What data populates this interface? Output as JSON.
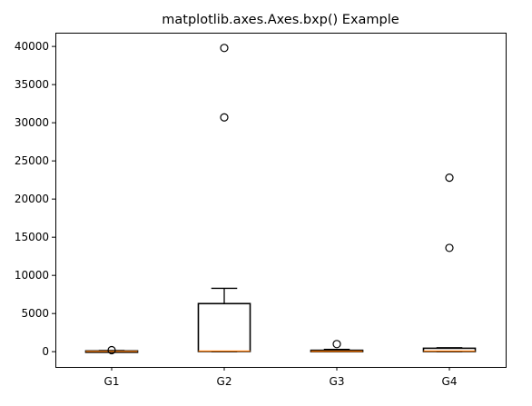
{
  "chart_data": {
    "type": "boxplot",
    "title": "matplotlib.axes.Axes.bxp() Example",
    "xlabel": "",
    "ylabel": "",
    "categories": [
      "G1",
      "G2",
      "G3",
      "G4"
    ],
    "y_ticks": [
      0,
      5000,
      10000,
      15000,
      20000,
      25000,
      30000,
      35000,
      40000
    ],
    "y_tick_labels": [
      "0",
      "5000",
      "10000",
      "15000",
      "20000",
      "25000",
      "30000",
      "35000",
      "40000"
    ],
    "ylim": [
      -2000,
      41800
    ],
    "grid": false,
    "legend": false,
    "boxes": [
      {
        "label": "G1",
        "whislo": 0,
        "q1": 10,
        "med": 40,
        "q3": 100,
        "whishi": 160,
        "fliers": [
          200
        ]
      },
      {
        "label": "G2",
        "whislo": 0,
        "q1": 30,
        "med": 80,
        "q3": 6300,
        "whishi": 8300,
        "fliers": [
          30700,
          39800
        ]
      },
      {
        "label": "G3",
        "whislo": 0,
        "q1": 20,
        "med": 60,
        "q3": 180,
        "whishi": 300,
        "fliers": [
          1000
        ]
      },
      {
        "label": "G4",
        "whislo": 0,
        "q1": 20,
        "med": 80,
        "q3": 450,
        "whishi": 520,
        "fliers": [
          13600,
          22800
        ]
      }
    ],
    "colors": {
      "box": "#000000",
      "median": "#ff7f0e",
      "flier": "#000000"
    }
  }
}
